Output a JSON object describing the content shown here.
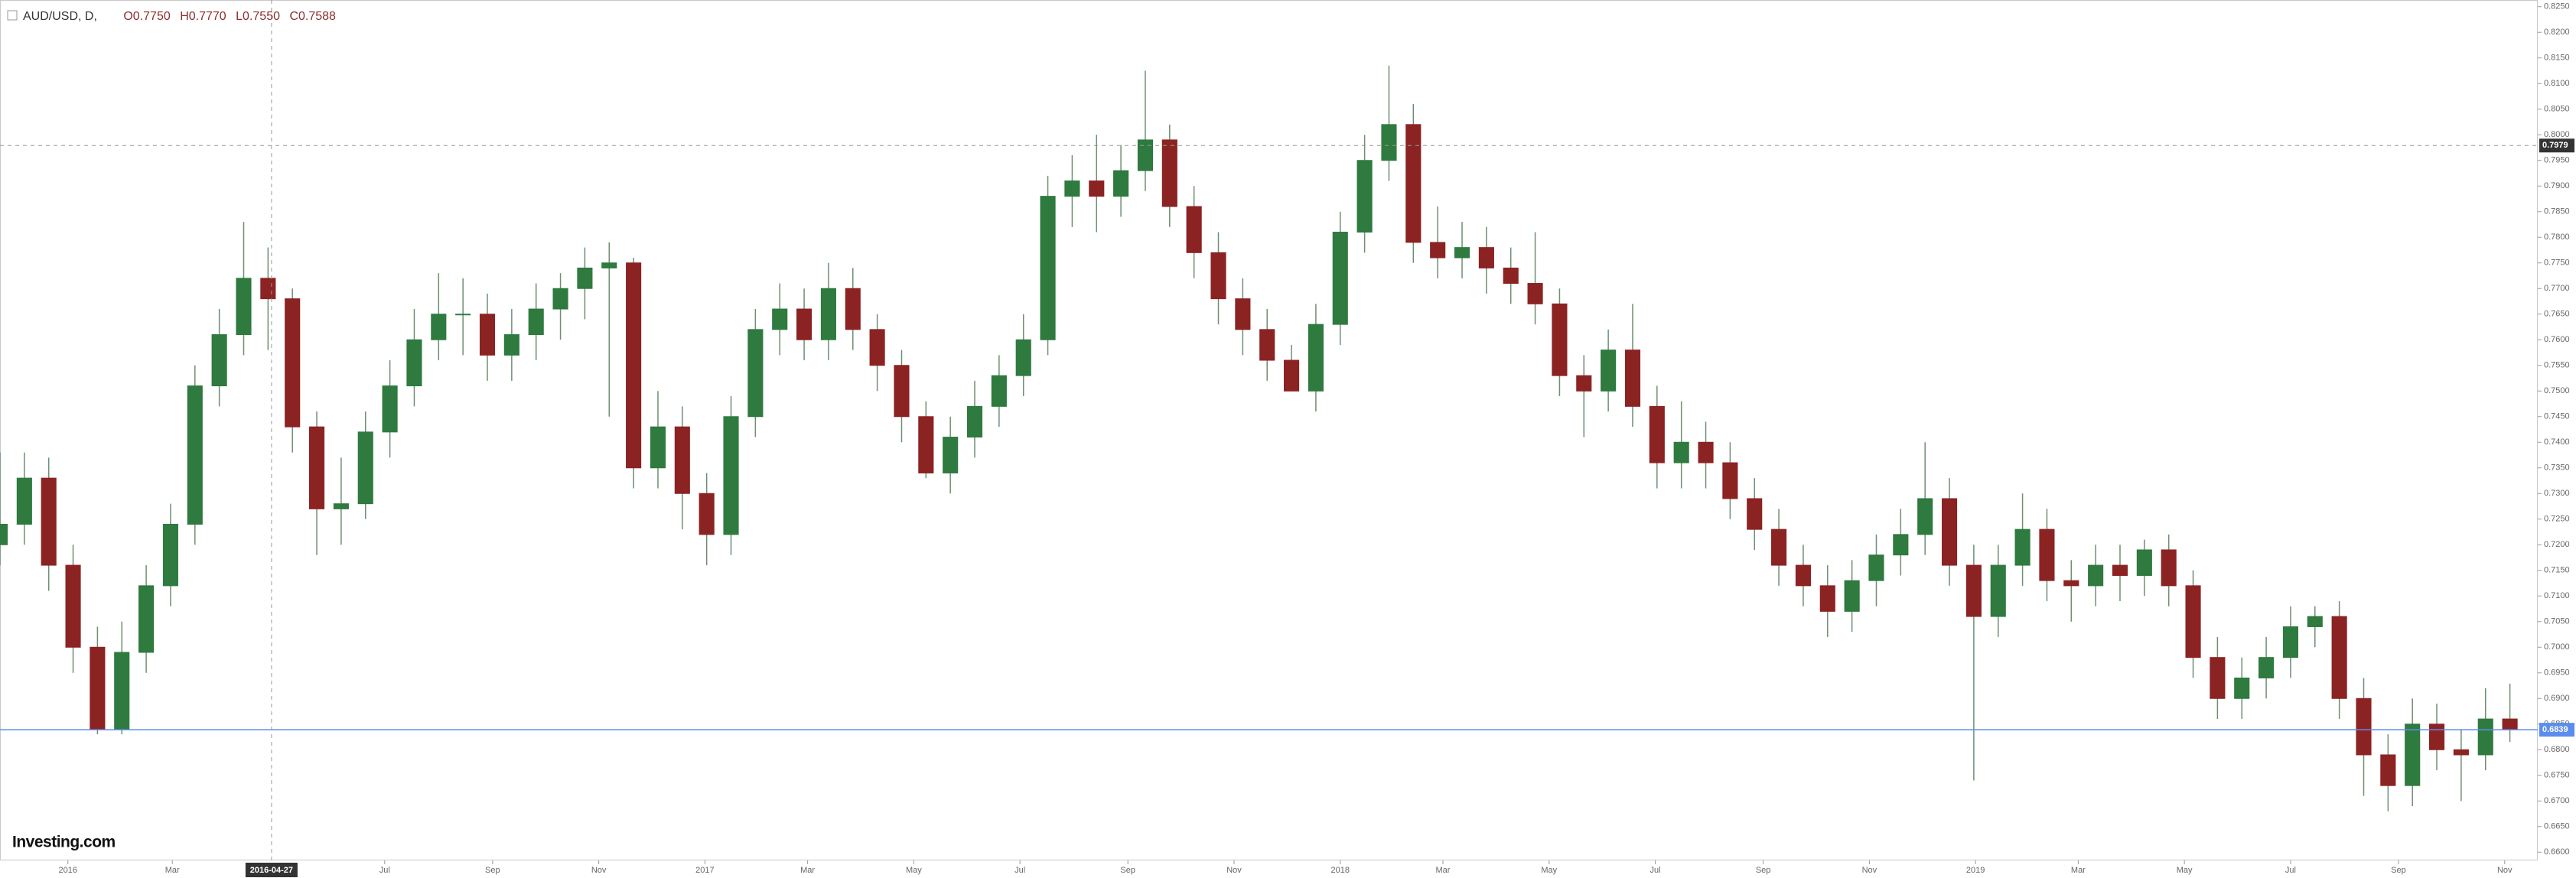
{
  "chart_data": {
    "type": "candlestick",
    "header": {
      "symbol": "AUD/USD, D,",
      "open": "O0.7750",
      "high": "H0.7770",
      "low": "L0.7550",
      "close": "C0.7588"
    },
    "logo": "Investing.com",
    "up_color": "#2f7a3f",
    "down_color": "#8c2323",
    "x": [
      "2015-11-23",
      "2015-12-07",
      "2015-12-21",
      "2016-01-04",
      "2016-01-18",
      "2016-02-01",
      "2016-02-15",
      "2016-02-29",
      "2016-03-14",
      "2016-03-28",
      "2016-04-11",
      "2016-04-25",
      "2016-05-09",
      "2016-05-23",
      "2016-06-06",
      "2016-06-20",
      "2016-07-04",
      "2016-07-18",
      "2016-08-01",
      "2016-08-15",
      "2016-08-29",
      "2016-09-12",
      "2016-09-26",
      "2016-10-10",
      "2016-10-24",
      "2016-11-07",
      "2016-11-21",
      "2016-12-05",
      "2016-12-19",
      "2017-01-02",
      "2017-01-16",
      "2017-01-30",
      "2017-02-13",
      "2017-02-27",
      "2017-03-13",
      "2017-03-27",
      "2017-04-10",
      "2017-04-24",
      "2017-05-08",
      "2017-05-22",
      "2017-06-05",
      "2017-06-19",
      "2017-07-03",
      "2017-07-17",
      "2017-07-31",
      "2017-08-14",
      "2017-08-28",
      "2017-09-11",
      "2017-09-25",
      "2017-10-09",
      "2017-10-23",
      "2017-11-06",
      "2017-11-20",
      "2017-12-04",
      "2017-12-18",
      "2018-01-01",
      "2018-01-15",
      "2018-01-29",
      "2018-02-12",
      "2018-02-26",
      "2018-03-12",
      "2018-03-26",
      "2018-04-09",
      "2018-04-23",
      "2018-05-07",
      "2018-05-21",
      "2018-06-04",
      "2018-06-18",
      "2018-07-02",
      "2018-07-16",
      "2018-07-30",
      "2018-08-13",
      "2018-08-27",
      "2018-09-10",
      "2018-09-24",
      "2018-10-08",
      "2018-10-22",
      "2018-11-05",
      "2018-11-19",
      "2018-12-03",
      "2018-12-17",
      "2018-12-31",
      "2019-01-14",
      "2019-01-28",
      "2019-02-11",
      "2019-02-25",
      "2019-03-11",
      "2019-03-25",
      "2019-04-08",
      "2019-04-22",
      "2019-05-06",
      "2019-05-20",
      "2019-06-03",
      "2019-06-17",
      "2019-07-01",
      "2019-07-15",
      "2019-07-29",
      "2019-08-12",
      "2019-08-26",
      "2019-09-09",
      "2019-09-23",
      "2019-10-07",
      "2019-10-21",
      "2019-11-04"
    ],
    "open": [
      0.72,
      0.724,
      0.733,
      0.716,
      0.7,
      0.684,
      0.699,
      0.712,
      0.724,
      0.751,
      0.761,
      0.772,
      0.768,
      0.743,
      0.727,
      0.728,
      0.742,
      0.751,
      0.76,
      0.765,
      0.765,
      0.757,
      0.761,
      0.766,
      0.77,
      0.774,
      0.775,
      0.735,
      0.743,
      0.73,
      0.722,
      0.745,
      0.762,
      0.766,
      0.76,
      0.77,
      0.762,
      0.755,
      0.745,
      0.734,
      0.741,
      0.747,
      0.753,
      0.76,
      0.788,
      0.791,
      0.788,
      0.793,
      0.799,
      0.786,
      0.777,
      0.768,
      0.762,
      0.756,
      0.75,
      0.763,
      0.781,
      0.795,
      0.802,
      0.779,
      0.776,
      0.778,
      0.774,
      0.771,
      0.767,
      0.753,
      0.75,
      0.758,
      0.747,
      0.736,
      0.74,
      0.736,
      0.729,
      0.723,
      0.716,
      0.712,
      0.707,
      0.713,
      0.718,
      0.722,
      0.729,
      0.716,
      0.706,
      0.716,
      0.723,
      0.713,
      0.712,
      0.716,
      0.714,
      0.719,
      0.712,
      0.698,
      0.69,
      0.694,
      0.698,
      0.704,
      0.706,
      0.69,
      0.679,
      0.673,
      0.685,
      0.68,
      0.679,
      0.686
    ],
    "high": [
      0.738,
      0.738,
      0.737,
      0.72,
      0.704,
      0.705,
      0.716,
      0.728,
      0.755,
      0.766,
      0.783,
      0.778,
      0.77,
      0.746,
      0.737,
      0.746,
      0.756,
      0.766,
      0.773,
      0.772,
      0.769,
      0.766,
      0.771,
      0.773,
      0.778,
      0.779,
      0.776,
      0.75,
      0.747,
      0.734,
      0.749,
      0.766,
      0.771,
      0.77,
      0.775,
      0.774,
      0.765,
      0.758,
      0.748,
      0.745,
      0.752,
      0.757,
      0.765,
      0.792,
      0.796,
      0.8,
      0.798,
      0.8125,
      0.802,
      0.79,
      0.781,
      0.772,
      0.766,
      0.759,
      0.767,
      0.785,
      0.8,
      0.8135,
      0.806,
      0.786,
      0.783,
      0.782,
      0.778,
      0.781,
      0.77,
      0.757,
      0.762,
      0.767,
      0.751,
      0.748,
      0.744,
      0.74,
      0.733,
      0.727,
      0.72,
      0.716,
      0.717,
      0.722,
      0.727,
      0.74,
      0.733,
      0.72,
      0.72,
      0.73,
      0.727,
      0.717,
      0.72,
      0.72,
      0.721,
      0.722,
      0.715,
      0.702,
      0.698,
      0.702,
      0.708,
      0.708,
      0.709,
      0.694,
      0.683,
      0.69,
      0.689,
      0.684,
      0.692,
      0.6929
    ],
    "low": [
      0.716,
      0.72,
      0.711,
      0.695,
      0.683,
      0.683,
      0.695,
      0.708,
      0.72,
      0.747,
      0.757,
      0.758,
      0.738,
      0.718,
      0.72,
      0.725,
      0.737,
      0.747,
      0.756,
      0.757,
      0.752,
      0.752,
      0.756,
      0.76,
      0.764,
      0.745,
      0.731,
      0.731,
      0.723,
      0.716,
      0.718,
      0.741,
      0.757,
      0.756,
      0.756,
      0.758,
      0.75,
      0.74,
      0.733,
      0.73,
      0.737,
      0.743,
      0.749,
      0.757,
      0.782,
      0.781,
      0.784,
      0.789,
      0.782,
      0.772,
      0.763,
      0.757,
      0.752,
      0.75,
      0.746,
      0.759,
      0.777,
      0.791,
      0.775,
      0.772,
      0.772,
      0.769,
      0.767,
      0.763,
      0.749,
      0.741,
      0.746,
      0.743,
      0.731,
      0.731,
      0.731,
      0.725,
      0.719,
      0.712,
      0.708,
      0.702,
      0.703,
      0.708,
      0.714,
      0.718,
      0.712,
      0.674,
      0.702,
      0.712,
      0.709,
      0.705,
      0.708,
      0.709,
      0.71,
      0.708,
      0.694,
      0.686,
      0.686,
      0.69,
      0.694,
      0.7,
      0.686,
      0.671,
      0.668,
      0.669,
      0.676,
      0.67,
      0.676,
      0.6815
    ],
    "close": [
      0.724,
      0.733,
      0.716,
      0.7,
      0.684,
      0.699,
      0.712,
      0.724,
      0.751,
      0.761,
      0.772,
      0.768,
      0.743,
      0.727,
      0.728,
      0.742,
      0.751,
      0.76,
      0.765,
      0.765,
      0.757,
      0.761,
      0.766,
      0.77,
      0.774,
      0.775,
      0.735,
      0.743,
      0.73,
      0.722,
      0.745,
      0.762,
      0.766,
      0.76,
      0.77,
      0.762,
      0.755,
      0.745,
      0.734,
      0.741,
      0.747,
      0.753,
      0.76,
      0.788,
      0.791,
      0.788,
      0.793,
      0.799,
      0.786,
      0.777,
      0.768,
      0.762,
      0.756,
      0.75,
      0.763,
      0.781,
      0.795,
      0.802,
      0.779,
      0.776,
      0.778,
      0.774,
      0.771,
      0.767,
      0.753,
      0.75,
      0.758,
      0.747,
      0.736,
      0.74,
      0.736,
      0.729,
      0.723,
      0.716,
      0.712,
      0.707,
      0.713,
      0.718,
      0.722,
      0.729,
      0.716,
      0.706,
      0.716,
      0.723,
      0.713,
      0.712,
      0.716,
      0.714,
      0.719,
      0.712,
      0.698,
      0.69,
      0.694,
      0.698,
      0.704,
      0.706,
      0.69,
      0.679,
      0.673,
      0.685,
      0.68,
      0.679,
      0.686,
      0.6839
    ],
    "xlim": [
      "2015-11-23",
      "2019-11-20"
    ],
    "xticks": [
      {
        "value": "2016-01-01",
        "label": "2016"
      },
      {
        "value": "2016-03-01",
        "label": "Mar"
      },
      {
        "value": "2016-07-01",
        "label": "Jul"
      },
      {
        "value": "2016-09-01",
        "label": "Sep"
      },
      {
        "value": "2016-11-01",
        "label": "Nov"
      },
      {
        "value": "2017-01-01",
        "label": "2017"
      },
      {
        "value": "2017-03-01",
        "label": "Mar"
      },
      {
        "value": "2017-05-01",
        "label": "May"
      },
      {
        "value": "2017-07-01",
        "label": "Jul"
      },
      {
        "value": "2017-09-01",
        "label": "Sep"
      },
      {
        "value": "2017-11-01",
        "label": "Nov"
      },
      {
        "value": "2018-01-01",
        "label": "2018"
      },
      {
        "value": "2018-03-01",
        "label": "Mar"
      },
      {
        "value": "2018-05-01",
        "label": "May"
      },
      {
        "value": "2018-07-01",
        "label": "Jul"
      },
      {
        "value": "2018-09-01",
        "label": "Sep"
      },
      {
        "value": "2018-11-01",
        "label": "Nov"
      },
      {
        "value": "2019-01-01",
        "label": "2019"
      },
      {
        "value": "2019-03-01",
        "label": "Mar"
      },
      {
        "value": "2019-05-01",
        "label": "May"
      },
      {
        "value": "2019-07-01",
        "label": "Jul"
      },
      {
        "value": "2019-09-01",
        "label": "Sep"
      },
      {
        "value": "2019-11-01",
        "label": "Nov"
      }
    ],
    "ylim": [
      0.6584,
      0.8263
    ],
    "yticks": [
      {
        "value": 0.825,
        "label": "0.8250"
      },
      {
        "value": 0.82,
        "label": "0.8200"
      },
      {
        "value": 0.815,
        "label": "0.8150"
      },
      {
        "value": 0.81,
        "label": "0.8100"
      },
      {
        "value": 0.805,
        "label": "0.8050"
      },
      {
        "value": 0.8,
        "label": "0.8000"
      },
      {
        "value": 0.795,
        "label": "0.7950"
      },
      {
        "value": 0.79,
        "label": "0.7900"
      },
      {
        "value": 0.785,
        "label": "0.7850"
      },
      {
        "value": 0.78,
        "label": "0.7800"
      },
      {
        "value": 0.775,
        "label": "0.7750"
      },
      {
        "value": 0.77,
        "label": "0.7700"
      },
      {
        "value": 0.765,
        "label": "0.7650"
      },
      {
        "value": 0.76,
        "label": "0.7600"
      },
      {
        "value": 0.755,
        "label": "0.7550"
      },
      {
        "value": 0.75,
        "label": "0.7500"
      },
      {
        "value": 0.745,
        "label": "0.7450"
      },
      {
        "value": 0.74,
        "label": "0.7400"
      },
      {
        "value": 0.735,
        "label": "0.7350"
      },
      {
        "value": 0.73,
        "label": "0.7300"
      },
      {
        "value": 0.725,
        "label": "0.7250"
      },
      {
        "value": 0.72,
        "label": "0.7200"
      },
      {
        "value": 0.715,
        "label": "0.7150"
      },
      {
        "value": 0.71,
        "label": "0.7100"
      },
      {
        "value": 0.705,
        "label": "0.7050"
      },
      {
        "value": 0.7,
        "label": "0.7000"
      },
      {
        "value": 0.695,
        "label": "0.6950"
      },
      {
        "value": 0.69,
        "label": "0.6900"
      },
      {
        "value": 0.685,
        "label": "0.6850"
      },
      {
        "value": 0.68,
        "label": "0.6800"
      },
      {
        "value": 0.675,
        "label": "0.6750"
      },
      {
        "value": 0.67,
        "label": "0.6700"
      },
      {
        "value": 0.665,
        "label": "0.6650"
      },
      {
        "value": 0.66,
        "label": "0.6600"
      }
    ],
    "crosshair": {
      "x": "2016-04-27",
      "y": 0.7979
    },
    "last_price": 0.6839,
    "last_price_color": "#5b8def"
  }
}
